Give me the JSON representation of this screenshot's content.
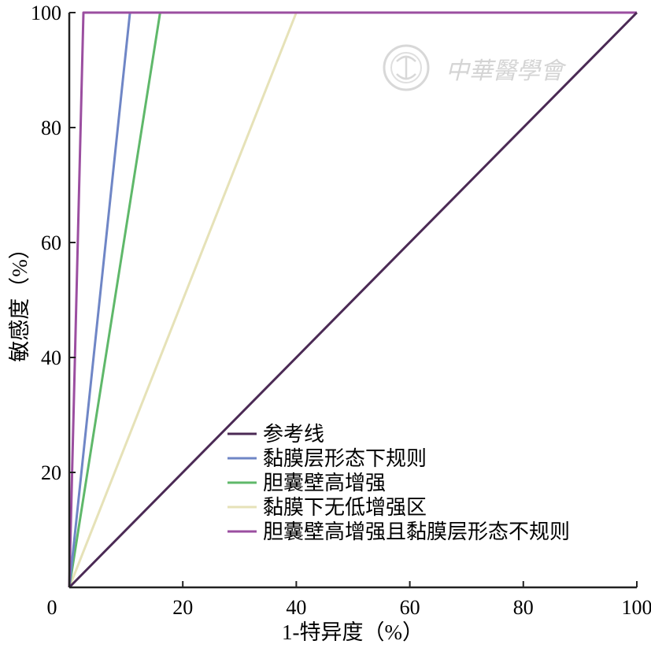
{
  "chart_data": {
    "type": "line",
    "xlabel": "1-特异度（%）",
    "ylabel": "敏感度（%）",
    "xlim": [
      0,
      100
    ],
    "ylim": [
      0,
      100
    ],
    "x_ticks": [
      "0",
      "20",
      "40",
      "60",
      "80",
      "100"
    ],
    "y_ticks": [
      "20",
      "40",
      "60",
      "80",
      "100"
    ],
    "grid": false,
    "legend_position": "bottom-right",
    "series": [
      {
        "name": "参考线",
        "color": "#4b2a55",
        "points": [
          [
            0,
            0
          ],
          [
            100,
            100
          ]
        ]
      },
      {
        "name": "黏膜层形态下规则",
        "color": "#6f86c6",
        "points": [
          [
            0,
            0
          ],
          [
            10.7,
            100
          ],
          [
            100,
            100
          ]
        ]
      },
      {
        "name": "胆囊壁高增强",
        "color": "#5fb86a",
        "points": [
          [
            0,
            0
          ],
          [
            16,
            100
          ],
          [
            100,
            100
          ]
        ]
      },
      {
        "name": "黏膜下无低增强区",
        "color": "#e6e2b8",
        "points": [
          [
            0,
            0
          ],
          [
            40,
            100
          ],
          [
            100,
            100
          ]
        ]
      },
      {
        "name": "胆囊壁高增强且黏膜层形态不规则",
        "color": "#9b4ea0",
        "points": [
          [
            0,
            0
          ],
          [
            2.5,
            100
          ],
          [
            100,
            100
          ]
        ]
      }
    ]
  },
  "watermark": {
    "text": "中華醫學會"
  }
}
